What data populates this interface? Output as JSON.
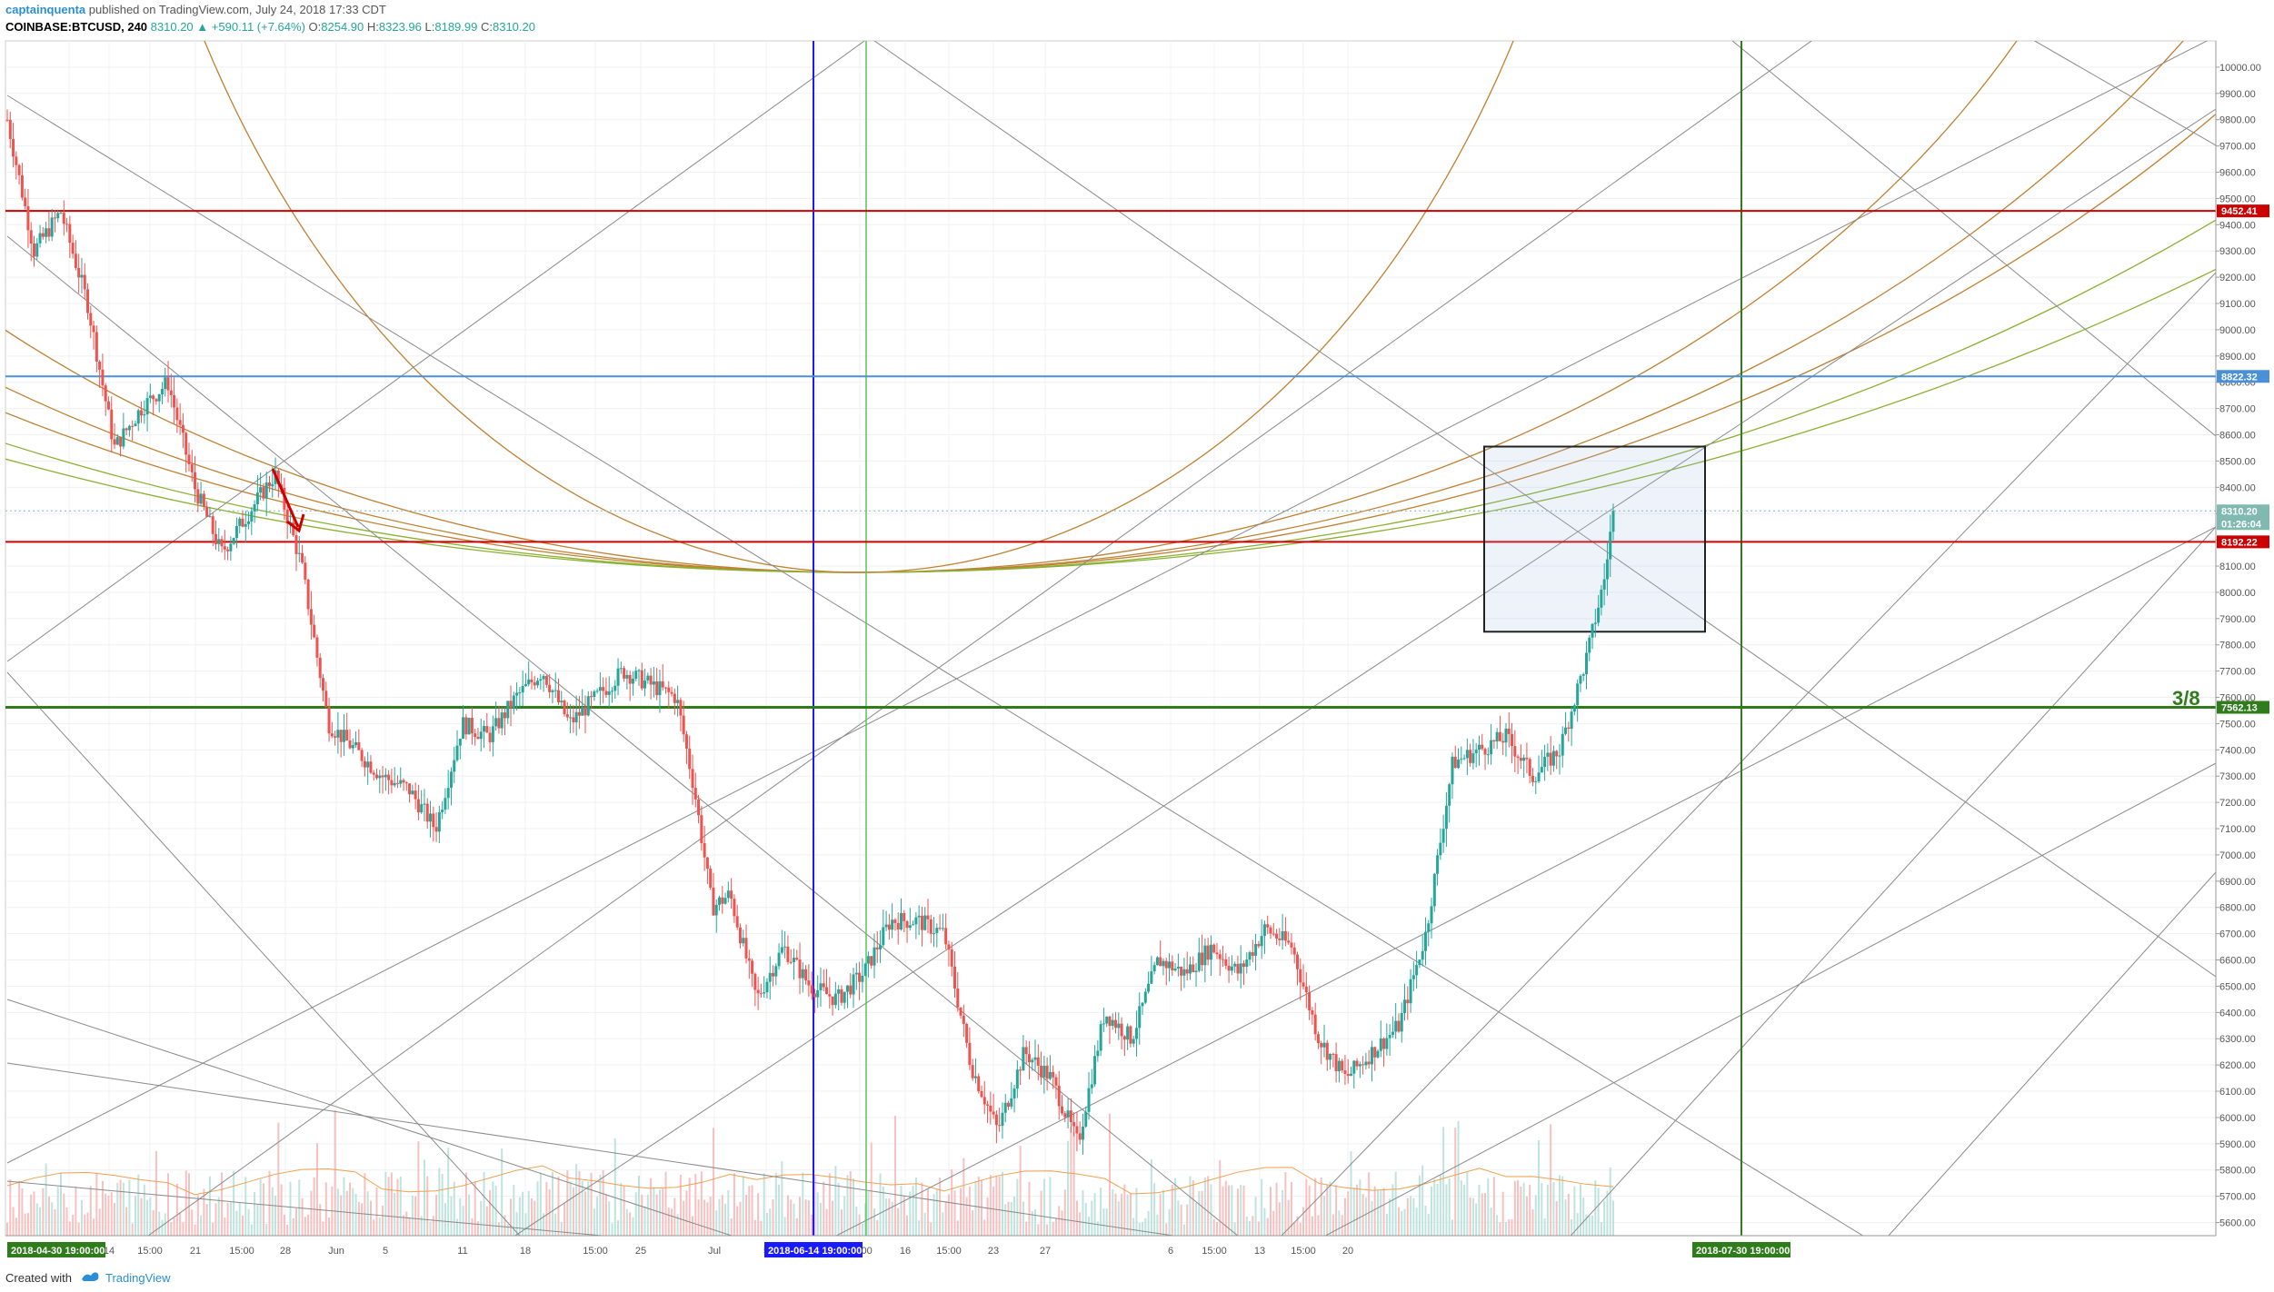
{
  "header": {
    "author": "captainquenta",
    "published": "published on TradingView.com, July 24, 2018 17:33 CDT",
    "symbol": "COINBASE:BTCUSD, 240",
    "close_main": "8310.20",
    "change": "+590.11 (+7.64%)",
    "o_label": "O:",
    "o_value": "8254.90",
    "h_label": "H:",
    "h_value": "8323.96",
    "l_label": "L:",
    "l_value": "8189.99",
    "c_label": "C:",
    "c_value": "8310.20"
  },
  "footer": {
    "created_with": "Created with",
    "brand": "TradingView"
  },
  "colors": {
    "up": "#26a69a",
    "down": "#ef5350",
    "resistance_red": "#cc0000",
    "blue_level": "#4a90d9",
    "green_level": "#2e7d1a",
    "price_tag": "#7fb9b0",
    "arc_orange": "#c08030",
    "arc_green": "#8ab030",
    "gann_gray": "#666666",
    "blue_vline": "#1a1aff",
    "green_vline_light": "#5cc15c",
    "green_vline_dark": "#2e7d1a"
  },
  "chart_data": {
    "type": "candlestick",
    "symbol": "COINBASE:BTCUSD",
    "timeframe": "240",
    "ylim": [
      5550,
      10100
    ],
    "y_ticks": [
      5600,
      5700,
      5800,
      5900,
      6000,
      6100,
      6200,
      6300,
      6400,
      6500,
      6600,
      6700,
      6800,
      6900,
      7000,
      7100,
      7200,
      7300,
      7400,
      7500,
      7600,
      7700,
      7800,
      7900,
      8000,
      8100,
      8200,
      8300,
      8400,
      8500,
      8600,
      8700,
      8800,
      8900,
      9000,
      9100,
      9200,
      9300,
      9400,
      9500,
      9600,
      9700,
      9800,
      9900,
      10000
    ],
    "x_tick_labels": [
      "30",
      "14",
      "15:00",
      "21",
      "15:00",
      "28",
      "Jun",
      "5",
      "11",
      "18",
      "15:00",
      "25",
      "Jul",
      "5",
      "9",
      "15:00",
      "16",
      "15:00",
      "23",
      "27",
      "6",
      "15:00",
      "13",
      "15:00",
      "20"
    ],
    "x_tags": [
      {
        "label": "2018-04-30 19:00:00",
        "color": "#2e7d1a"
      },
      {
        "label": "2018-06-14 19:00:00",
        "color": "#1a1aff"
      },
      {
        "label": "2018-07-30 19:00:00",
        "color": "#2e7d1a"
      }
    ],
    "horizontal_levels": [
      {
        "value": 9452.41,
        "label": "9452.41",
        "color": "#cc0000"
      },
      {
        "value": 8822.32,
        "label": "8822.32",
        "color": "#4a90d9"
      },
      {
        "value": 8192.22,
        "label": "8192.22",
        "color": "#cc0000"
      },
      {
        "value": 7562.13,
        "label": "7562.13",
        "color": "#2e7d1a"
      }
    ],
    "last_price": {
      "value": 8310.2,
      "label": "8310.20",
      "countdown": "01:26:04"
    },
    "annotation": "3/8",
    "price_path": [
      {
        "t": 0,
        "p": 9800
      },
      {
        "t": 3,
        "p": 9300
      },
      {
        "t": 6,
        "p": 9450
      },
      {
        "t": 9,
        "p": 9100
      },
      {
        "t": 12,
        "p": 8550
      },
      {
        "t": 15,
        "p": 8700
      },
      {
        "t": 18,
        "p": 8800
      },
      {
        "t": 21,
        "p": 8400
      },
      {
        "t": 24,
        "p": 8150
      },
      {
        "t": 27,
        "p": 8300
      },
      {
        "t": 30,
        "p": 8450
      },
      {
        "t": 33,
        "p": 8100
      },
      {
        "t": 36,
        "p": 7500
      },
      {
        "t": 39,
        "p": 7400
      },
      {
        "t": 42,
        "p": 7300
      },
      {
        "t": 45,
        "p": 7250
      },
      {
        "t": 48,
        "p": 7100
      },
      {
        "t": 51,
        "p": 7500
      },
      {
        "t": 54,
        "p": 7450
      },
      {
        "t": 57,
        "p": 7600
      },
      {
        "t": 60,
        "p": 7700
      },
      {
        "t": 63,
        "p": 7500
      },
      {
        "t": 66,
        "p": 7600
      },
      {
        "t": 69,
        "p": 7700
      },
      {
        "t": 72,
        "p": 7650
      },
      {
        "t": 75,
        "p": 7600
      },
      {
        "t": 77,
        "p": 7250
      },
      {
        "t": 79,
        "p": 6800
      },
      {
        "t": 81,
        "p": 6850
      },
      {
        "t": 84,
        "p": 6450
      },
      {
        "t": 87,
        "p": 6650
      },
      {
        "t": 90,
        "p": 6500
      },
      {
        "t": 93,
        "p": 6450
      },
      {
        "t": 96,
        "p": 6550
      },
      {
        "t": 99,
        "p": 6750
      },
      {
        "t": 102,
        "p": 6750
      },
      {
        "t": 105,
        "p": 6700
      },
      {
        "t": 108,
        "p": 6200
      },
      {
        "t": 111,
        "p": 5950
      },
      {
        "t": 114,
        "p": 6250
      },
      {
        "t": 117,
        "p": 6150
      },
      {
        "t": 120,
        "p": 5900
      },
      {
        "t": 123,
        "p": 6400
      },
      {
        "t": 126,
        "p": 6300
      },
      {
        "t": 129,
        "p": 6600
      },
      {
        "t": 132,
        "p": 6550
      },
      {
        "t": 135,
        "p": 6650
      },
      {
        "t": 138,
        "p": 6550
      },
      {
        "t": 141,
        "p": 6720
      },
      {
        "t": 144,
        "p": 6650
      },
      {
        "t": 147,
        "p": 6300
      },
      {
        "t": 150,
        "p": 6150
      },
      {
        "t": 153,
        "p": 6250
      },
      {
        "t": 156,
        "p": 6350
      },
      {
        "t": 159,
        "p": 6700
      },
      {
        "t": 162,
        "p": 7350
      },
      {
        "t": 165,
        "p": 7400
      },
      {
        "t": 168,
        "p": 7450
      },
      {
        "t": 171,
        "p": 7300
      },
      {
        "t": 174,
        "p": 7400
      },
      {
        "t": 177,
        "p": 7750
      },
      {
        "t": 179,
        "p": 8050
      },
      {
        "t": 180,
        "p": 8310
      }
    ]
  }
}
